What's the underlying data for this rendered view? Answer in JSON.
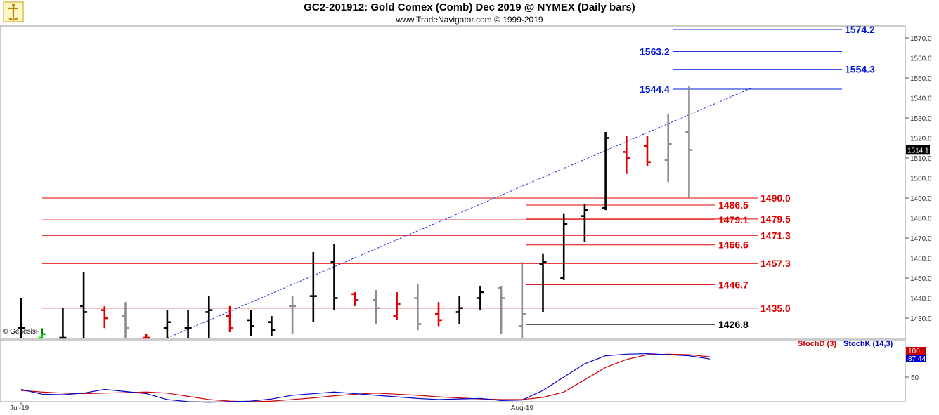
{
  "title": "GC2-201912:  Gold Comex (Comb) Dec 2019 @ NYMEX  (Daily bars)",
  "subtitle": "www.TradeNavigator.com © 1999-2019",
  "watermark": "© GenesisFT",
  "chart_data": [
    {
      "type": "ohlc",
      "ylim": [
        1420,
        1580
      ],
      "y_ticks": [
        1430.0,
        1440.0,
        1450.0,
        1460.0,
        1470.0,
        1480.0,
        1490.0,
        1500.0,
        1510.0,
        1520.0,
        1530.0,
        1540.0,
        1550.0,
        1560.0,
        1570.0
      ],
      "x_labels": [
        {
          "label": "Jul-19",
          "bar": 0
        },
        {
          "label": "Aug-19",
          "bar": 24
        }
      ],
      "current_price": "1514.1",
      "bars": [
        {
          "o": 1425,
          "h": 1440,
          "l": 1418,
          "c": 1425,
          "color": "black"
        },
        {
          "o": 1420,
          "h": 1425,
          "l": 1412,
          "c": 1422,
          "color": "green"
        },
        {
          "o": 1415,
          "h": 1435,
          "l": 1405,
          "c": 1410,
          "color": "black"
        },
        {
          "o": 1436,
          "h": 1453,
          "l": 1420,
          "c": 1433,
          "color": "black"
        },
        {
          "o": 1434,
          "h": 1436,
          "l": 1425,
          "c": 1430,
          "color": "red"
        },
        {
          "o": 1431,
          "h": 1438,
          "l": 1418,
          "c": 1425,
          "color": "gray"
        },
        {
          "o": 1420,
          "h": 1422,
          "l": 1410,
          "c": 1415,
          "color": "red"
        },
        {
          "o": 1425,
          "h": 1434,
          "l": 1420,
          "c": 1428,
          "color": "black"
        },
        {
          "o": 1425,
          "h": 1434,
          "l": 1416,
          "c": 1425,
          "color": "black"
        },
        {
          "o": 1433,
          "h": 1441,
          "l": 1418,
          "c": 1434,
          "color": "black"
        },
        {
          "o": 1431,
          "h": 1436,
          "l": 1423,
          "c": 1425,
          "color": "red"
        },
        {
          "o": 1429,
          "h": 1434,
          "l": 1421,
          "c": 1426,
          "color": "black"
        },
        {
          "o": 1428,
          "h": 1431,
          "l": 1421,
          "c": 1424,
          "color": "black"
        },
        {
          "o": 1436,
          "h": 1441,
          "l": 1422,
          "c": 1436,
          "color": "gray"
        },
        {
          "o": 1441,
          "h": 1463,
          "l": 1428,
          "c": 1441,
          "color": "black"
        },
        {
          "o": 1458,
          "h": 1467,
          "l": 1434,
          "c": 1440,
          "color": "black"
        },
        {
          "o": 1442,
          "h": 1443,
          "l": 1436,
          "c": 1439,
          "color": "red"
        },
        {
          "o": 1439,
          "h": 1444,
          "l": 1427,
          "c": 1435,
          "color": "gray"
        },
        {
          "o": 1431,
          "h": 1443,
          "l": 1429,
          "c": 1437,
          "color": "red"
        },
        {
          "o": 1440,
          "h": 1447,
          "l": 1424,
          "c": 1427,
          "color": "gray"
        },
        {
          "o": 1432,
          "h": 1438,
          "l": 1426,
          "c": 1429,
          "color": "red"
        },
        {
          "o": 1433,
          "h": 1441,
          "l": 1427,
          "c": 1435,
          "color": "black"
        },
        {
          "o": 1440,
          "h": 1446,
          "l": 1434,
          "c": 1443,
          "color": "black"
        },
        {
          "o": 1445,
          "h": 1446,
          "l": 1422,
          "c": 1440,
          "color": "gray"
        },
        {
          "o": 1426,
          "h": 1458,
          "l": 1418,
          "c": 1432,
          "color": "gray"
        },
        {
          "o": 1457,
          "h": 1462,
          "l": 1433,
          "c": 1458,
          "color": "black"
        },
        {
          "o": 1450,
          "h": 1482,
          "l": 1449,
          "c": 1477,
          "color": "black"
        },
        {
          "o": 1481,
          "h": 1487,
          "l": 1468,
          "c": 1484,
          "color": "black"
        },
        {
          "o": 1485,
          "h": 1523,
          "l": 1484,
          "c": 1520,
          "color": "black"
        },
        {
          "o": 1513,
          "h": 1521,
          "l": 1502,
          "c": 1510,
          "color": "red"
        },
        {
          "o": 1516,
          "h": 1521,
          "l": 1506,
          "c": 1508,
          "color": "red"
        },
        {
          "o": 1509,
          "h": 1532,
          "l": 1498,
          "c": 1517,
          "color": "gray"
        },
        {
          "o": 1523,
          "h": 1546,
          "l": 1490,
          "c": 1514,
          "color": "gray"
        }
      ],
      "levels": [
        {
          "value": "1574.2",
          "price": 1574.2,
          "color": "blue"
        },
        {
          "value": "1563.2",
          "price": 1563.2,
          "color": "blue"
        },
        {
          "value": "1554.3",
          "price": 1554.3,
          "color": "blue"
        },
        {
          "value": "1544.4",
          "price": 1544.4,
          "color": "blue"
        },
        {
          "value": "1490.0",
          "price": 1490.0,
          "color": "red"
        },
        {
          "value": "1486.5",
          "price": 1486.5,
          "color": "red"
        },
        {
          "value": "1479.5",
          "price": 1479.5,
          "color": "red"
        },
        {
          "value": "1479.1",
          "price": 1479.1,
          "color": "red"
        },
        {
          "value": "1471.3",
          "price": 1471.3,
          "color": "red"
        },
        {
          "value": "1466.6",
          "price": 1466.6,
          "color": "red"
        },
        {
          "value": "1457.3",
          "price": 1457.3,
          "color": "red"
        },
        {
          "value": "1446.7",
          "price": 1446.7,
          "color": "red"
        },
        {
          "value": "1435.0",
          "price": 1435.0,
          "color": "red"
        },
        {
          "value": "1426.8",
          "price": 1426.8,
          "color": "black"
        }
      ],
      "trendline": {
        "from": [
          7,
          1420
        ],
        "to": [
          35,
          1545
        ],
        "color": "blue",
        "style": "dashed"
      }
    },
    {
      "type": "line",
      "indicator": "stochastic",
      "ylim": [
        0,
        100
      ],
      "y_ticks": [
        50
      ],
      "value_labels": [
        {
          "text": "100",
          "value": 100
        },
        {
          "text": "87.44",
          "value": 87.44
        }
      ],
      "series": [
        {
          "name": "StochD (3)",
          "color": "#cc0000",
          "values": [
            25,
            22,
            20,
            19,
            20,
            21,
            22,
            20,
            14,
            8,
            5,
            4,
            5,
            8,
            11,
            15,
            18,
            20,
            18,
            16,
            13,
            11,
            9,
            8,
            8,
            12,
            22,
            45,
            68,
            83,
            92,
            93,
            92,
            88
          ]
        },
        {
          "name": "StochK (14,3)",
          "color": "#0000cc",
          "values": [
            27,
            18,
            17,
            20,
            27,
            23,
            19,
            8,
            4,
            3,
            4,
            5,
            9,
            16,
            19,
            22,
            19,
            16,
            13,
            10,
            8,
            9,
            10,
            6,
            7,
            25,
            50,
            75,
            90,
            93,
            94,
            92,
            90,
            84
          ]
        }
      ]
    }
  ]
}
